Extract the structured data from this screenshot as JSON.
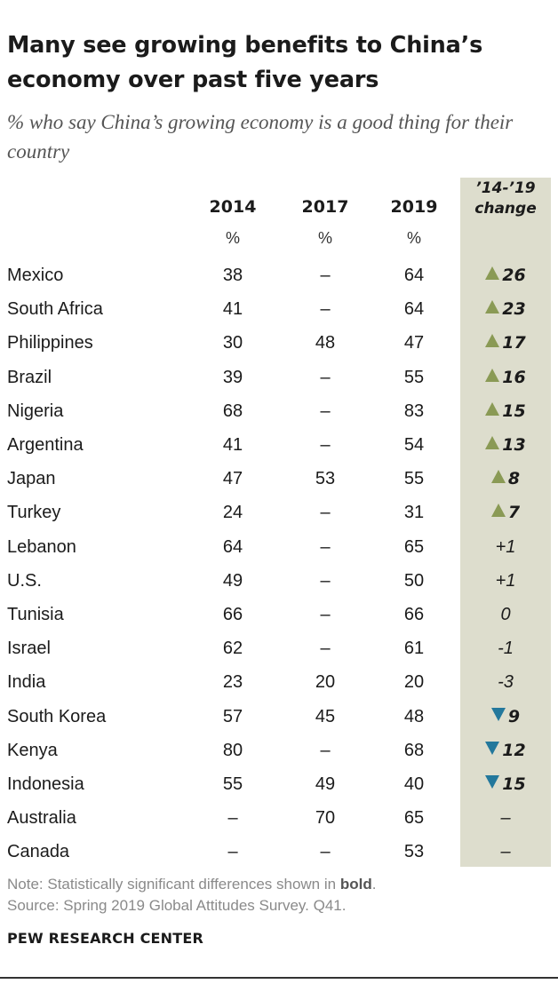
{
  "title": "Many see growing benefits to China’s economy over past five years",
  "subtitle": "% who say China’s growing economy is a good thing for their country",
  "columns": {
    "y2014": "2014",
    "y2017": "2017",
    "y2019": "2019",
    "pct": "%",
    "change_line1": "’14-’19",
    "change_line2": "change"
  },
  "note_prefix": "Note: Statistically significant differences shown in ",
  "note_bold": "bold",
  "note_suffix": ".",
  "source": "Source: Spring 2019 Global Attitudes Survey. Q41.",
  "brand": "PEW RESEARCH CENTER",
  "colors": {
    "shade": "#ddddcd",
    "increase_arrow": "#8a9a55",
    "decrease_arrow": "#23789c"
  },
  "chart_data": {
    "type": "table",
    "columns": [
      "2014",
      "2017",
      "2019",
      "’14-’19 change"
    ],
    "rows": [
      {
        "country": "Mexico",
        "y2014": "38",
        "y2017": "–",
        "y2019": "64",
        "change": "26",
        "direction": "up",
        "significant": true
      },
      {
        "country": "South Africa",
        "y2014": "41",
        "y2017": "–",
        "y2019": "64",
        "change": "23",
        "direction": "up",
        "significant": true
      },
      {
        "country": "Philippines",
        "y2014": "30",
        "y2017": "48",
        "y2019": "47",
        "change": "17",
        "direction": "up",
        "significant": true
      },
      {
        "country": "Brazil",
        "y2014": "39",
        "y2017": "–",
        "y2019": "55",
        "change": "16",
        "direction": "up",
        "significant": true
      },
      {
        "country": "Nigeria",
        "y2014": "68",
        "y2017": "–",
        "y2019": "83",
        "change": "15",
        "direction": "up",
        "significant": true
      },
      {
        "country": "Argentina",
        "y2014": "41",
        "y2017": "–",
        "y2019": "54",
        "change": "13",
        "direction": "up",
        "significant": true
      },
      {
        "country": "Japan",
        "y2014": "47",
        "y2017": "53",
        "y2019": "55",
        "change": "8",
        "direction": "up",
        "significant": true
      },
      {
        "country": "Turkey",
        "y2014": "24",
        "y2017": "–",
        "y2019": "31",
        "change": "7",
        "direction": "up",
        "significant": true
      },
      {
        "country": "Lebanon",
        "y2014": "64",
        "y2017": "–",
        "y2019": "65",
        "change": "+1",
        "direction": "none",
        "significant": false
      },
      {
        "country": "U.S.",
        "y2014": "49",
        "y2017": "–",
        "y2019": "50",
        "change": "+1",
        "direction": "none",
        "significant": false
      },
      {
        "country": "Tunisia",
        "y2014": "66",
        "y2017": "–",
        "y2019": "66",
        "change": "0",
        "direction": "none",
        "significant": false
      },
      {
        "country": "Israel",
        "y2014": "62",
        "y2017": "–",
        "y2019": "61",
        "change": "-1",
        "direction": "none",
        "significant": false
      },
      {
        "country": "India",
        "y2014": "23",
        "y2017": "20",
        "y2019": "20",
        "change": "-3",
        "direction": "none",
        "significant": false
      },
      {
        "country": "South Korea",
        "y2014": "57",
        "y2017": "45",
        "y2019": "48",
        "change": "9",
        "direction": "down",
        "significant": true
      },
      {
        "country": "Kenya",
        "y2014": "80",
        "y2017": "–",
        "y2019": "68",
        "change": "12",
        "direction": "down",
        "significant": true
      },
      {
        "country": "Indonesia",
        "y2014": "55",
        "y2017": "49",
        "y2019": "40",
        "change": "15",
        "direction": "down",
        "significant": true
      },
      {
        "country": "Australia",
        "y2014": "–",
        "y2017": "70",
        "y2019": "65",
        "change": "–",
        "direction": "none",
        "significant": false
      },
      {
        "country": "Canada",
        "y2014": "–",
        "y2017": "–",
        "y2019": "53",
        "change": "–",
        "direction": "none",
        "significant": false
      }
    ]
  }
}
